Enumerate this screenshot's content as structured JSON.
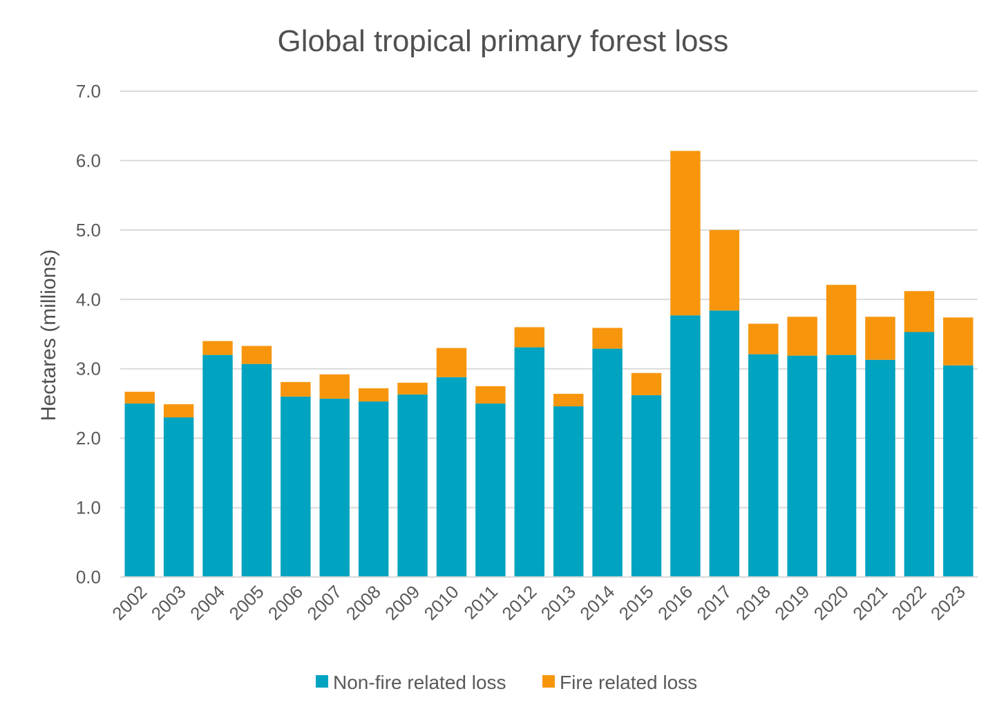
{
  "chart_data": {
    "type": "bar",
    "stacked": true,
    "title": "Global tropical primary forest loss",
    "xlabel": "",
    "ylabel": "Hectares (millions)",
    "ylim": [
      0,
      7
    ],
    "yticks": [
      "0.0",
      "1.0",
      "2.0",
      "3.0",
      "4.0",
      "5.0",
      "6.0",
      "7.0"
    ],
    "grid": true,
    "legend_position": "bottom",
    "categories": [
      "2002",
      "2003",
      "2004",
      "2005",
      "2006",
      "2007",
      "2008",
      "2009",
      "2010",
      "2011",
      "2012",
      "2013",
      "2014",
      "2015",
      "2016",
      "2017",
      "2018",
      "2019",
      "2020",
      "2021",
      "2022",
      "2023"
    ],
    "series": [
      {
        "name": "Non-fire related loss",
        "color": "#00a3c0",
        "values": [
          2.5,
          2.3,
          3.2,
          3.07,
          2.6,
          2.57,
          2.53,
          2.63,
          2.88,
          2.5,
          3.31,
          2.46,
          3.29,
          2.62,
          3.77,
          3.84,
          3.21,
          3.19,
          3.2,
          3.13,
          3.53,
          3.05
        ]
      },
      {
        "name": "Fire related loss",
        "color": "#f7960d",
        "values": [
          0.17,
          0.19,
          0.2,
          0.26,
          0.21,
          0.35,
          0.19,
          0.17,
          0.42,
          0.25,
          0.29,
          0.18,
          0.3,
          0.32,
          2.37,
          1.16,
          0.44,
          0.56,
          1.01,
          0.62,
          0.59,
          0.69
        ]
      }
    ]
  }
}
